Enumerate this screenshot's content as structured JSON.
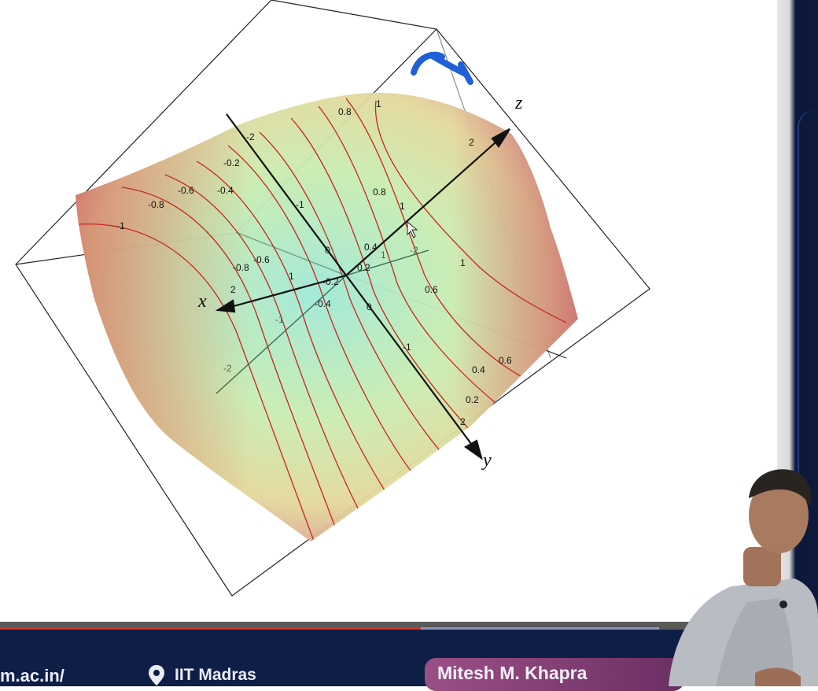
{
  "colors": {
    "surface_center": "#9fe8d7",
    "surface_mid": "#cdeaa4",
    "surface_edge": "#d98e8e",
    "contour": "#c6261e",
    "axis": "#111111",
    "axis_faint": "#3f6b52",
    "annotation": "#1f5fd8",
    "footer_bg": "#0f1e47",
    "progress_played": "#e0301e"
  },
  "plot": {
    "axis_labels": {
      "x": "x",
      "y": "y",
      "z": "z"
    },
    "y_axis_ticks": [
      "-2",
      "-1",
      "0",
      "1",
      "2"
    ],
    "z_axis_ticks": [
      "1",
      "2"
    ],
    "x_axis_ticks": [
      "1",
      "2"
    ],
    "faint_axis_ticks": [
      "-2",
      "-1",
      "1",
      "-2"
    ],
    "contour_labels": [
      "0.8",
      "1",
      "-0.2",
      "-0.6",
      "-0.4",
      "-0.8",
      "-1",
      "0.8",
      "1",
      "0",
      "0.4",
      "0.2",
      "-0.2",
      "-0.8",
      "-0.6",
      "-0.4",
      "0",
      "0.6",
      "1",
      "0.6",
      "0.4",
      "0.2"
    ]
  },
  "footer": {
    "url": "m.ac.in/",
    "location": "IIT Madras",
    "location_icon": "map-pin-icon",
    "speaker": "Mitesh M. Khapra"
  },
  "video": {
    "progress_played": 0.514,
    "progress_buffered": 0.805
  }
}
